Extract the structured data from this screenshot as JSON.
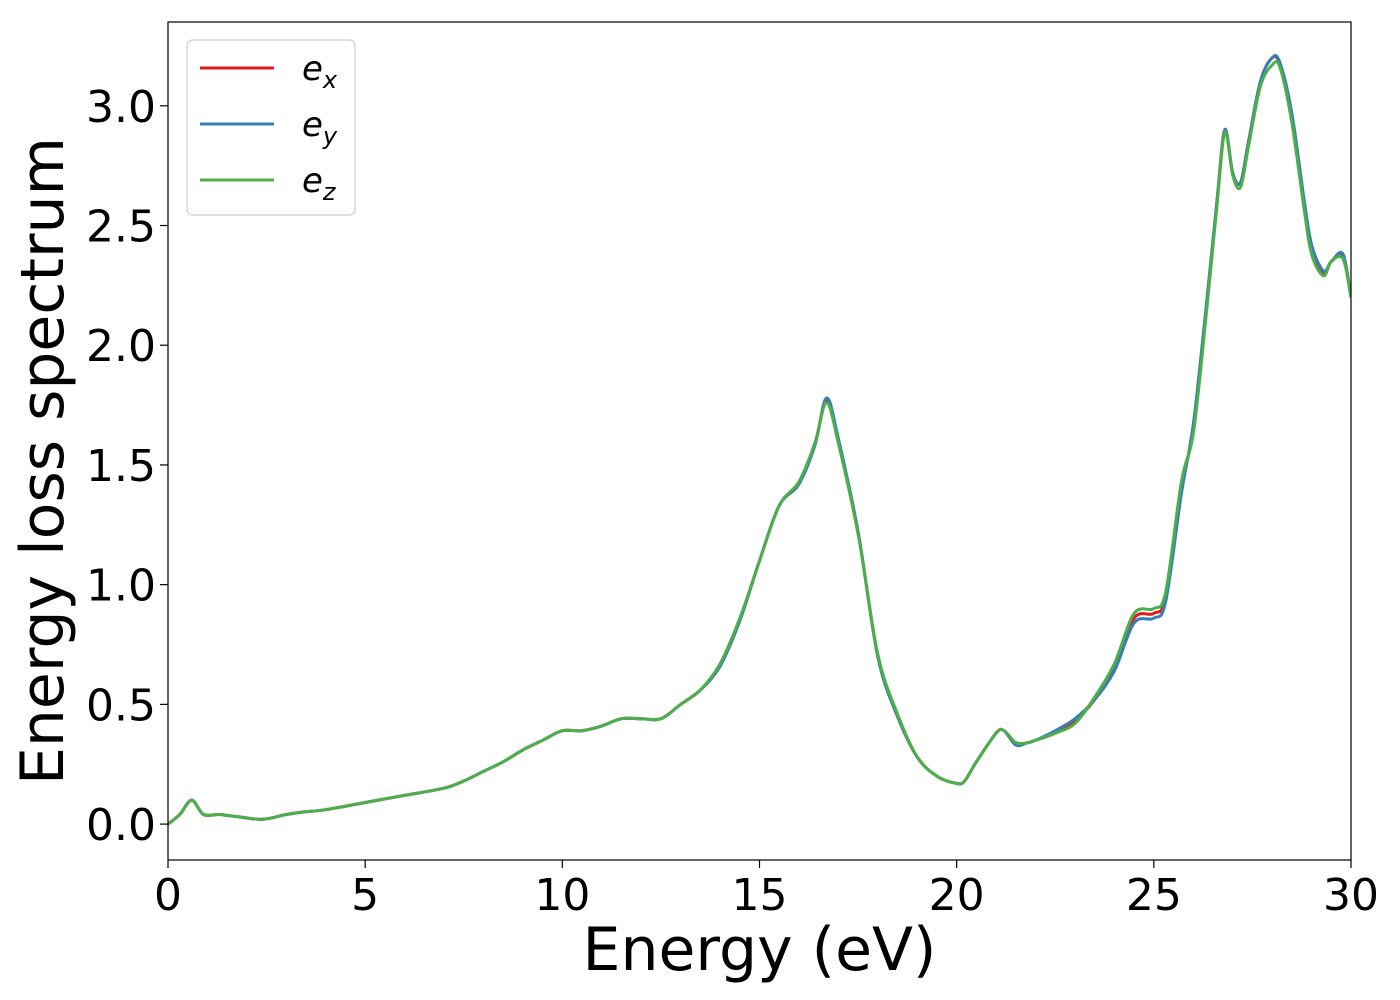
{
  "chart_data": {
    "type": "line",
    "xlabel": "Energy (eV)",
    "ylabel": "Energy loss spectrum",
    "xlim": [
      0,
      30
    ],
    "ylim": [
      -0.15,
      3.35
    ],
    "xticks": [
      0,
      5,
      10,
      15,
      20,
      25,
      30
    ],
    "xtick_labels": [
      "0",
      "5",
      "10",
      "15",
      "20",
      "25",
      "30"
    ],
    "yticks": [
      0.0,
      0.5,
      1.0,
      1.5,
      2.0,
      2.5,
      3.0
    ],
    "ytick_labels": [
      "0.0",
      "0.5",
      "1.0",
      "1.5",
      "2.0",
      "2.5",
      "3.0"
    ],
    "grid": false,
    "legend_position": "top-left",
    "series": [
      {
        "name": "e",
        "subscript": "x",
        "color": "#e41a1c",
        "x": [
          0,
          0.3,
          0.6,
          0.9,
          1.3,
          1.8,
          2.4,
          3.0,
          3.4,
          4.0,
          5.0,
          6.0,
          7.0,
          7.5,
          8.0,
          8.5,
          9.0,
          9.5,
          10.0,
          10.5,
          11.0,
          11.5,
          12.0,
          12.5,
          13.0,
          13.5,
          14.0,
          14.5,
          15.0,
          15.5,
          16.0,
          16.4,
          16.7,
          17.0,
          17.5,
          18.0,
          18.5,
          19.0,
          19.5,
          20.0,
          20.2,
          20.5,
          21.0,
          21.2,
          21.5,
          21.8,
          22.0,
          22.5,
          23.0,
          23.5,
          24.0,
          24.5,
          25.0,
          25.3,
          25.7,
          26.0,
          26.3,
          26.6,
          26.8,
          27.0,
          27.2,
          27.4,
          27.7,
          28.0,
          28.2,
          28.5,
          28.8,
          29.0,
          29.3,
          29.5,
          29.8,
          30.0
        ],
        "y": [
          0.0,
          0.04,
          0.1,
          0.04,
          0.04,
          0.03,
          0.02,
          0.04,
          0.05,
          0.06,
          0.09,
          0.12,
          0.15,
          0.18,
          0.22,
          0.26,
          0.31,
          0.35,
          0.39,
          0.39,
          0.41,
          0.44,
          0.44,
          0.44,
          0.5,
          0.56,
          0.66,
          0.85,
          1.1,
          1.33,
          1.42,
          1.58,
          1.77,
          1.6,
          1.22,
          0.7,
          0.45,
          0.28,
          0.2,
          0.17,
          0.18,
          0.26,
          0.38,
          0.39,
          0.34,
          0.34,
          0.35,
          0.38,
          0.43,
          0.52,
          0.65,
          0.86,
          0.88,
          0.95,
          1.4,
          1.65,
          2.1,
          2.6,
          2.9,
          2.72,
          2.68,
          2.85,
          3.1,
          3.2,
          3.17,
          2.95,
          2.6,
          2.4,
          2.3,
          2.35,
          2.37,
          2.2
        ]
      },
      {
        "name": "e",
        "subscript": "y",
        "color": "#377eb8",
        "x": [
          0,
          0.3,
          0.6,
          0.9,
          1.3,
          1.8,
          2.4,
          3.0,
          3.4,
          4.0,
          5.0,
          6.0,
          7.0,
          7.5,
          8.0,
          8.5,
          9.0,
          9.5,
          10.0,
          10.5,
          11.0,
          11.5,
          12.0,
          12.5,
          13.0,
          13.5,
          14.0,
          14.5,
          15.0,
          15.5,
          16.0,
          16.4,
          16.7,
          17.0,
          17.5,
          18.0,
          18.5,
          19.0,
          19.5,
          20.0,
          20.2,
          20.5,
          21.0,
          21.2,
          21.5,
          21.8,
          22.0,
          22.5,
          23.0,
          23.5,
          24.0,
          24.5,
          25.0,
          25.3,
          25.7,
          26.0,
          26.3,
          26.6,
          26.8,
          27.0,
          27.2,
          27.4,
          27.7,
          28.0,
          28.2,
          28.5,
          28.8,
          29.0,
          29.3,
          29.5,
          29.8,
          30.0
        ],
        "y": [
          0.0,
          0.04,
          0.1,
          0.04,
          0.04,
          0.03,
          0.02,
          0.04,
          0.05,
          0.06,
          0.09,
          0.12,
          0.15,
          0.18,
          0.22,
          0.26,
          0.31,
          0.35,
          0.39,
          0.39,
          0.41,
          0.44,
          0.44,
          0.44,
          0.5,
          0.56,
          0.66,
          0.85,
          1.1,
          1.33,
          1.42,
          1.58,
          1.78,
          1.61,
          1.22,
          0.7,
          0.45,
          0.28,
          0.2,
          0.17,
          0.18,
          0.26,
          0.38,
          0.39,
          0.33,
          0.34,
          0.35,
          0.39,
          0.44,
          0.52,
          0.64,
          0.84,
          0.86,
          0.93,
          1.38,
          1.67,
          2.12,
          2.6,
          2.9,
          2.72,
          2.68,
          2.85,
          3.1,
          3.2,
          3.18,
          2.97,
          2.62,
          2.42,
          2.31,
          2.35,
          2.38,
          2.2
        ]
      },
      {
        "name": "e",
        "subscript": "z",
        "color": "#4daf4a",
        "x": [
          0,
          0.3,
          0.6,
          0.9,
          1.3,
          1.8,
          2.4,
          3.0,
          3.4,
          4.0,
          5.0,
          6.0,
          7.0,
          7.5,
          8.0,
          8.5,
          9.0,
          9.5,
          10.0,
          10.5,
          11.0,
          11.5,
          12.0,
          12.5,
          13.0,
          13.5,
          14.0,
          14.5,
          15.0,
          15.5,
          16.0,
          16.4,
          16.7,
          17.0,
          17.5,
          18.0,
          18.5,
          19.0,
          19.5,
          20.0,
          20.2,
          20.5,
          21.0,
          21.2,
          21.5,
          21.8,
          22.0,
          22.5,
          23.0,
          23.5,
          24.0,
          24.5,
          25.0,
          25.3,
          25.7,
          26.0,
          26.3,
          26.6,
          26.8,
          27.0,
          27.2,
          27.4,
          27.7,
          28.0,
          28.2,
          28.5,
          28.8,
          29.0,
          29.3,
          29.5,
          29.8,
          30.0
        ],
        "y": [
          0.0,
          0.04,
          0.1,
          0.04,
          0.04,
          0.03,
          0.02,
          0.04,
          0.05,
          0.06,
          0.09,
          0.12,
          0.15,
          0.18,
          0.22,
          0.26,
          0.31,
          0.35,
          0.39,
          0.39,
          0.41,
          0.44,
          0.44,
          0.44,
          0.5,
          0.56,
          0.67,
          0.86,
          1.1,
          1.33,
          1.43,
          1.59,
          1.76,
          1.59,
          1.21,
          0.71,
          0.46,
          0.28,
          0.2,
          0.17,
          0.18,
          0.26,
          0.38,
          0.39,
          0.34,
          0.34,
          0.35,
          0.38,
          0.42,
          0.53,
          0.67,
          0.88,
          0.9,
          0.97,
          1.43,
          1.63,
          2.08,
          2.58,
          2.89,
          2.71,
          2.66,
          2.83,
          3.08,
          3.17,
          3.16,
          2.93,
          2.58,
          2.38,
          2.29,
          2.35,
          2.36,
          2.2
        ]
      }
    ]
  }
}
